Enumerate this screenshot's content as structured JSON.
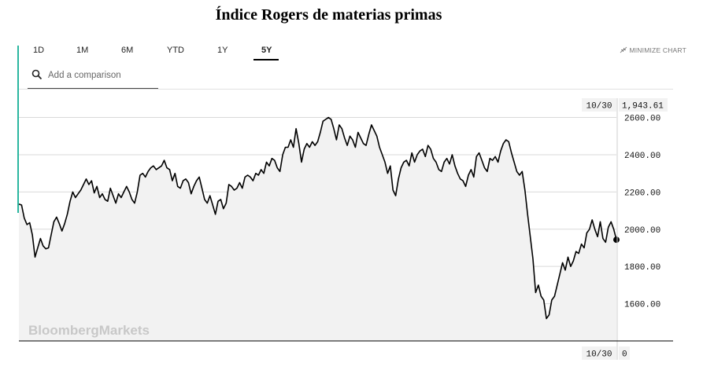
{
  "page": {
    "title": "Índice Rogers de materias primas"
  },
  "toolbar": {
    "ranges": [
      "1D",
      "1M",
      "6M",
      "YTD",
      "1Y",
      "5Y"
    ],
    "active_range": "5Y",
    "minimize_label": "MINIMIZE CHART",
    "search_placeholder": "Add a comparison"
  },
  "colors": {
    "line": "#000000",
    "fill": "#f2f2f2",
    "grid": "#d9d9d9",
    "accent": "#2bb6a0",
    "highlight": "#f3f000"
  },
  "chart_data": {
    "type": "line",
    "title": "",
    "xlabel": "",
    "ylabel": "",
    "ylim": [
      1400,
      2750
    ],
    "yticks": [
      "2600.00",
      "2400.00",
      "2200.00",
      "2000.00",
      "1800.00",
      "1600.00"
    ],
    "grid": true,
    "legend": "none",
    "watermark": "BloombergMarkets",
    "last_value_label": "1,943.61",
    "last_date_label": "10/30",
    "x_axis_end_label": "0",
    "series": [
      {
        "values": [
          2135,
          2130,
          2060,
          2025,
          2035,
          1970,
          1850,
          1900,
          1950,
          1910,
          1895,
          1900,
          1970,
          2040,
          2065,
          2030,
          1990,
          2030,
          2080,
          2150,
          2200,
          2170,
          2190,
          2210,
          2240,
          2270,
          2240,
          2260,
          2195,
          2230,
          2170,
          2190,
          2160,
          2150,
          2220,
          2180,
          2140,
          2190,
          2170,
          2200,
          2230,
          2200,
          2160,
          2140,
          2200,
          2290,
          2300,
          2280,
          2310,
          2330,
          2340,
          2320,
          2330,
          2340,
          2370,
          2330,
          2320,
          2260,
          2300,
          2230,
          2220,
          2260,
          2270,
          2250,
          2190,
          2230,
          2260,
          2280,
          2220,
          2160,
          2140,
          2180,
          2130,
          2080,
          2150,
          2160,
          2110,
          2140,
          2240,
          2230,
          2210,
          2220,
          2250,
          2220,
          2280,
          2290,
          2280,
          2260,
          2300,
          2290,
          2320,
          2300,
          2360,
          2340,
          2380,
          2370,
          2330,
          2310,
          2400,
          2440,
          2440,
          2480,
          2440,
          2540,
          2460,
          2360,
          2430,
          2460,
          2440,
          2470,
          2450,
          2470,
          2520,
          2580,
          2590,
          2600,
          2590,
          2540,
          2480,
          2560,
          2540,
          2490,
          2450,
          2500,
          2480,
          2440,
          2520,
          2490,
          2460,
          2450,
          2510,
          2560,
          2530,
          2500,
          2440,
          2400,
          2360,
          2300,
          2340,
          2210,
          2180,
          2270,
          2330,
          2360,
          2370,
          2340,
          2410,
          2360,
          2400,
          2420,
          2430,
          2390,
          2450,
          2430,
          2380,
          2360,
          2320,
          2310,
          2360,
          2380,
          2350,
          2400,
          2340,
          2300,
          2270,
          2260,
          2230,
          2290,
          2320,
          2280,
          2390,
          2410,
          2370,
          2330,
          2310,
          2380,
          2370,
          2390,
          2360,
          2420,
          2460,
          2480,
          2470,
          2410,
          2360,
          2310,
          2290,
          2310,
          2210,
          2080,
          1960,
          1840,
          1660,
          1700,
          1640,
          1620,
          1520,
          1540,
          1620,
          1640,
          1700,
          1760,
          1820,
          1780,
          1850,
          1800,
          1830,
          1880,
          1870,
          1920,
          1900,
          1980,
          2000,
          2050,
          2000,
          1960,
          2040,
          1950,
          1930,
          2010,
          2040,
          2000,
          1943.61
        ],
        "highlight_start_index": 223
      }
    ]
  }
}
